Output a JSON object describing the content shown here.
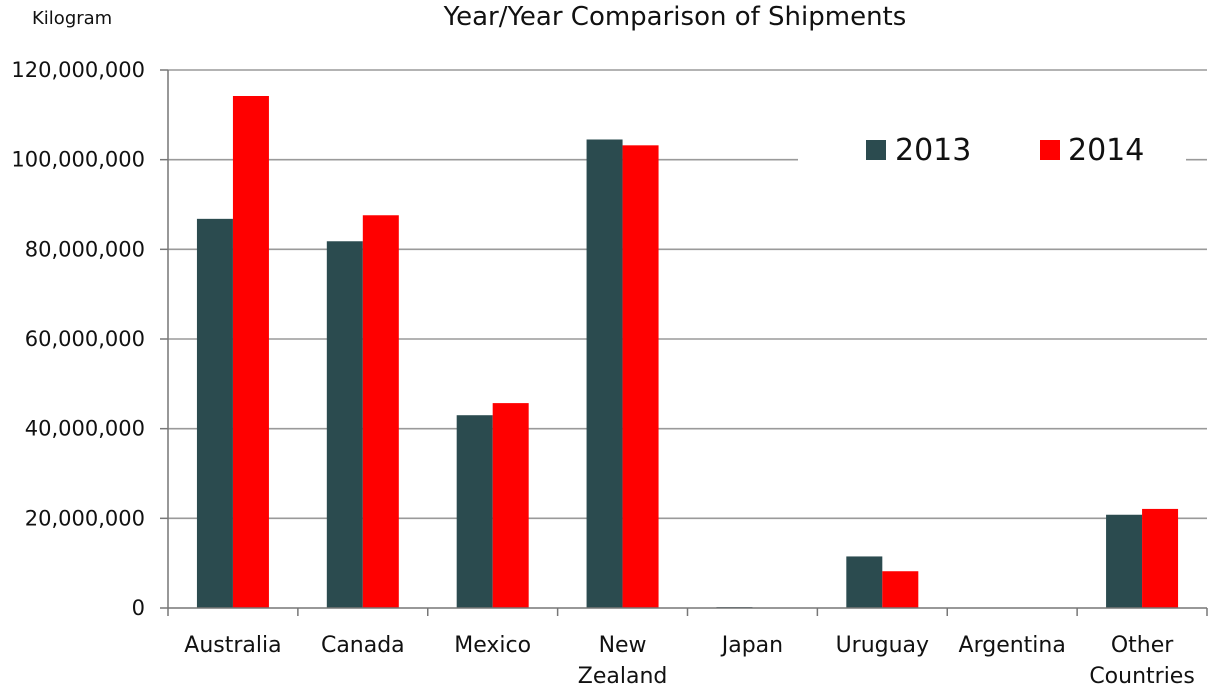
{
  "chart_data": {
    "type": "bar",
    "title": "Year/Year Comparison of Shipments",
    "ylabel": "Kilogram",
    "xlabel": "",
    "categories": [
      [
        "Australia"
      ],
      [
        "Canada"
      ],
      [
        "Mexico"
      ],
      [
        "New",
        "Zealand"
      ],
      [
        "Japan"
      ],
      [
        "Uruguay"
      ],
      [
        "Argentina"
      ],
      [
        "Other",
        "Countries"
      ]
    ],
    "series": [
      {
        "name": "2013",
        "color": "#2b4b4f",
        "values": [
          86800000,
          81800000,
          43000000,
          104500000,
          200000,
          11500000,
          0,
          20800000
        ]
      },
      {
        "name": "2014",
        "color": "#ff0000",
        "values": [
          114200000,
          87600000,
          45700000,
          103200000,
          100000,
          8200000,
          0,
          22100000
        ]
      }
    ],
    "ylim": [
      0,
      120000000
    ],
    "yticks": [
      0,
      20000000,
      40000000,
      60000000,
      80000000,
      100000000,
      120000000
    ],
    "ytick_labels": [
      "0",
      "20,000,000",
      "40,000,000",
      "60,000,000",
      "80,000,000",
      "100,000,000",
      "120,000,000"
    ],
    "grid": true,
    "legend_position": "top-right"
  }
}
